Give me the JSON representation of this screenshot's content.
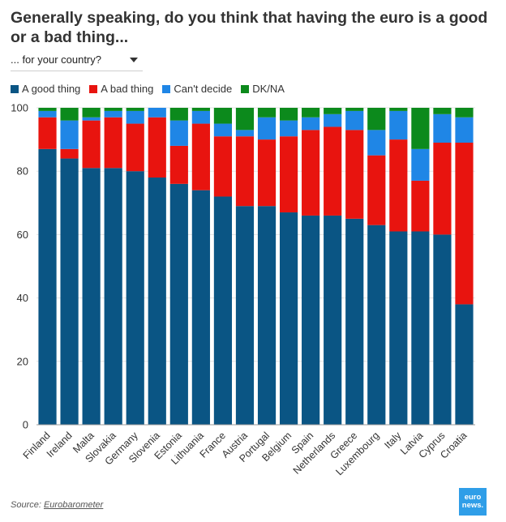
{
  "header": {
    "title": "Generally speaking, do you think that having the euro is a good or a bad thing...",
    "selector_value": "... for your country?",
    "selector_icon": "caret-down-icon"
  },
  "footer": {
    "source_prefix": "Source: ",
    "source_link": "Eurobarometer",
    "logo_line1": "euro",
    "logo_line2": "news."
  },
  "chart_data": {
    "type": "bar",
    "stacked": true,
    "title": "",
    "xlabel": "",
    "ylabel": "",
    "ylim": [
      0,
      100
    ],
    "yticks": [
      0,
      20,
      40,
      60,
      80,
      100
    ],
    "grid": true,
    "legend_position": "top-left",
    "categories": [
      "Finland",
      "Ireland",
      "Malta",
      "Slovakia",
      "Germany",
      "Slovenia",
      "Estonia",
      "Lithuania",
      "France",
      "Austria",
      "Portugal",
      "Belgium",
      "Spain",
      "Netherlands",
      "Greece",
      "Luxembourg",
      "Italy",
      "Latvia",
      "Cyprus",
      "Croatia"
    ],
    "series": [
      {
        "name": "A good thing",
        "color": "#0a5584",
        "values": [
          87,
          84,
          81,
          81,
          80,
          78,
          76,
          74,
          72,
          69,
          69,
          67,
          66,
          66,
          65,
          63,
          61,
          61,
          60,
          38
        ]
      },
      {
        "name": "A bad thing",
        "color": "#e8140f",
        "values": [
          10,
          3,
          15,
          16,
          15,
          19,
          12,
          21,
          19,
          22,
          21,
          24,
          27,
          28,
          28,
          22,
          29,
          16,
          29,
          51
        ]
      },
      {
        "name": "Can't decide",
        "color": "#1f86e6",
        "values": [
          2,
          9,
          1,
          2,
          4,
          3,
          8,
          4,
          4,
          2,
          7,
          5,
          4,
          4,
          6,
          8,
          9,
          10,
          9,
          8
        ]
      },
      {
        "name": "DK/NA",
        "color": "#0c8a1c",
        "values": [
          1,
          4,
          3,
          1,
          1,
          0,
          4,
          1,
          5,
          7,
          3,
          4,
          3,
          2,
          1,
          7,
          1,
          13,
          2,
          3
        ]
      }
    ]
  }
}
